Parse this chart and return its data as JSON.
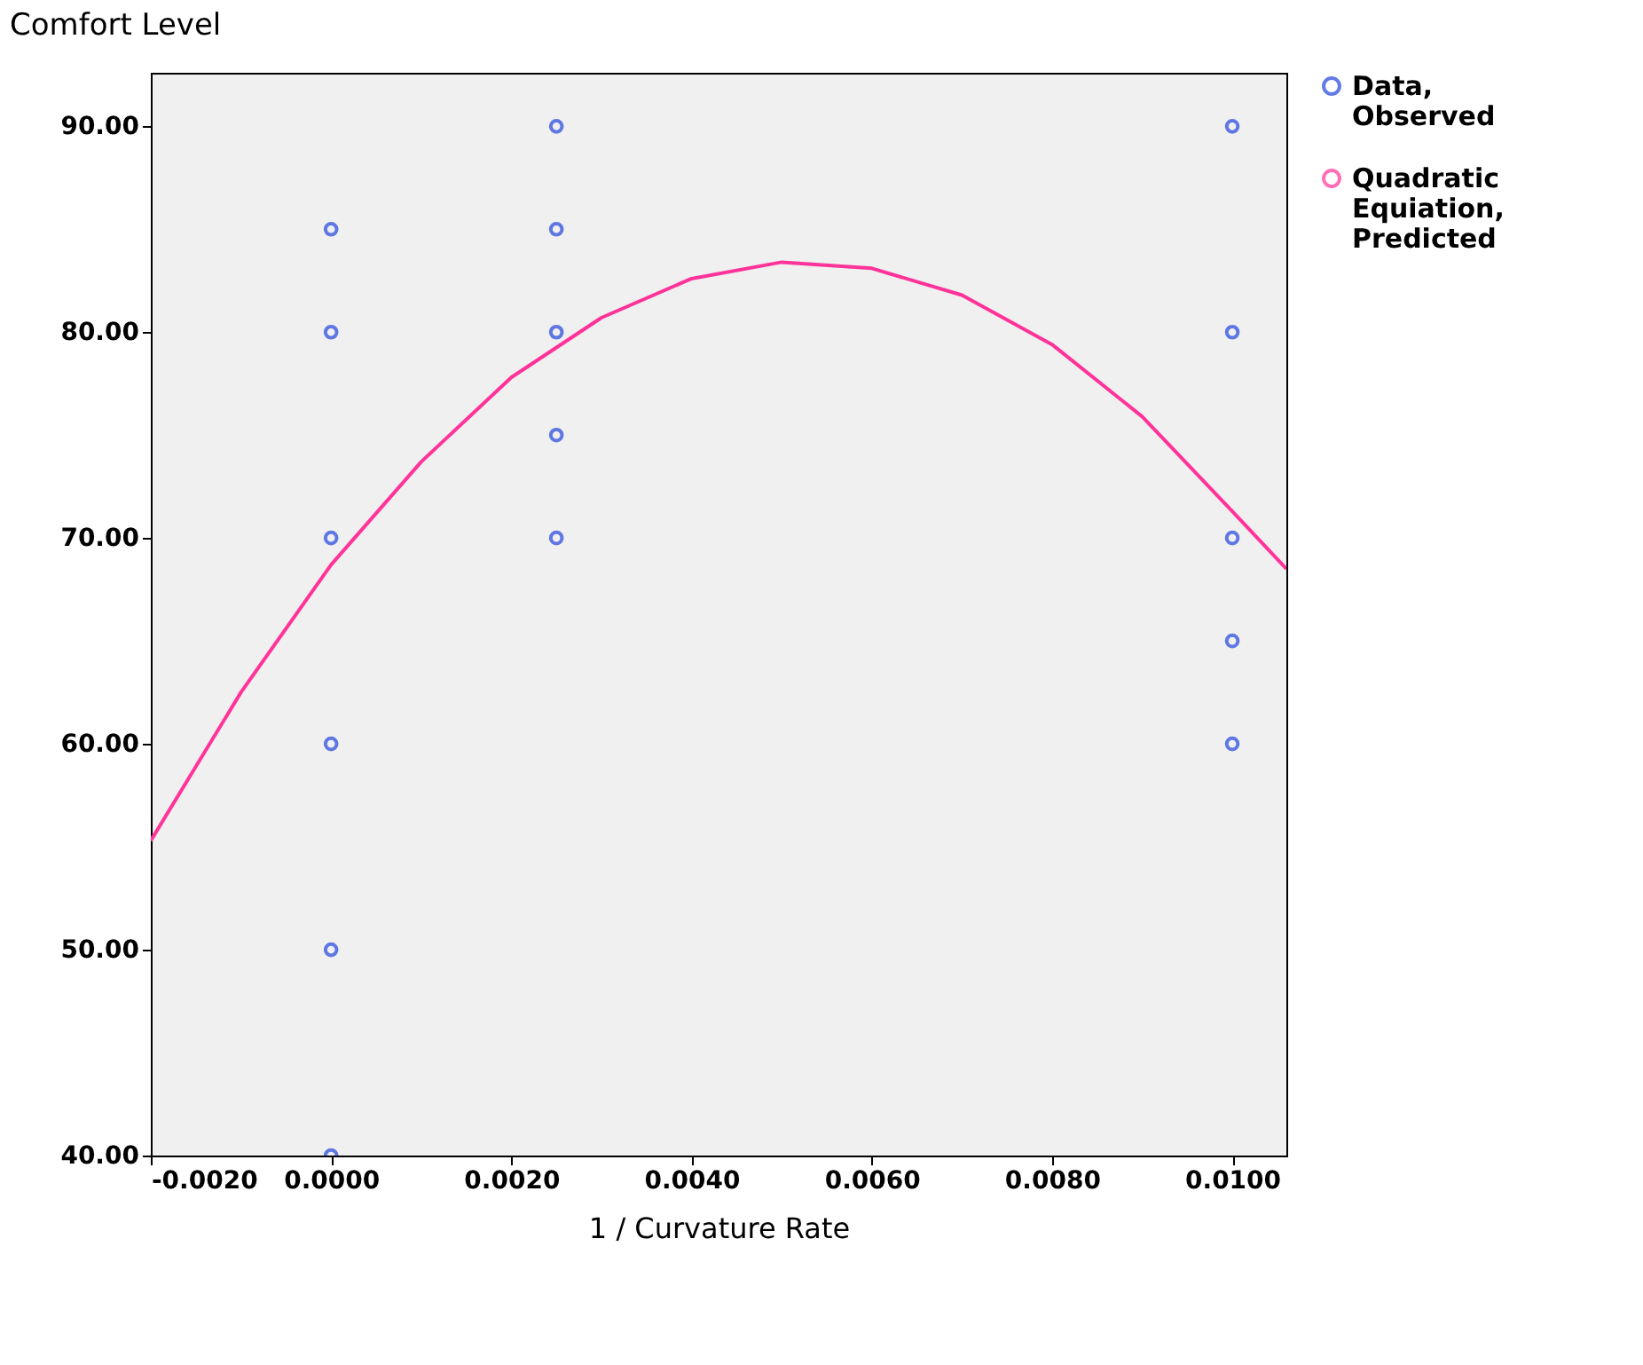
{
  "chart_data": {
    "type": "scatter",
    "xlabel": "1 / Curvature Rate",
    "ylabel": "Comfort Level",
    "xlim": [
      -0.002,
      0.0106
    ],
    "ylim": [
      40,
      92.6
    ],
    "xticks": [
      {
        "value": -0.002,
        "label": "-0.0020"
      },
      {
        "value": 0,
        "label": "0.0000"
      },
      {
        "value": 0.002,
        "label": "0.0020"
      },
      {
        "value": 0.004,
        "label": "0.0040"
      },
      {
        "value": 0.006,
        "label": "0.0060"
      },
      {
        "value": 0.008,
        "label": "0.0080"
      },
      {
        "value": 0.01,
        "label": "0.0100"
      }
    ],
    "yticks": [
      {
        "value": 40,
        "label": "40.00"
      },
      {
        "value": 50,
        "label": "50.00"
      },
      {
        "value": 60,
        "label": "60.00"
      },
      {
        "value": 70,
        "label": "70.00"
      },
      {
        "value": 80,
        "label": "80.00"
      },
      {
        "value": 90,
        "label": "90.00"
      }
    ],
    "grid": false,
    "legend": "right",
    "series": [
      {
        "name": "Data, Observed",
        "marker": "circle",
        "color": "#2244dd",
        "x": [
          0,
          0,
          0,
          0,
          0,
          0,
          0.0025,
          0.0025,
          0.0025,
          0.0025,
          0.0025,
          0.01,
          0.01,
          0.01,
          0.01,
          0.01
        ],
        "values": [
          85,
          80,
          70,
          60,
          50,
          40,
          90,
          85,
          80,
          75,
          70,
          90,
          80,
          70,
          65,
          60
        ]
      },
      {
        "name": "Quadratic Equiation, Predicted",
        "type": "line",
        "marker": "none",
        "color": "#ff3399",
        "line_style": "solid",
        "x": [
          -0.002,
          -0.001,
          0,
          0.001,
          0.002,
          0.003,
          0.004,
          0.005,
          0.006,
          0.007,
          0.008,
          0.009,
          0.01,
          0.0106
        ],
        "values": [
          55.3,
          62.5,
          68.7,
          73.7,
          77.8,
          80.7,
          82.6,
          83.4,
          83.1,
          81.8,
          79.4,
          75.9,
          71.3,
          68.5
        ]
      }
    ]
  }
}
